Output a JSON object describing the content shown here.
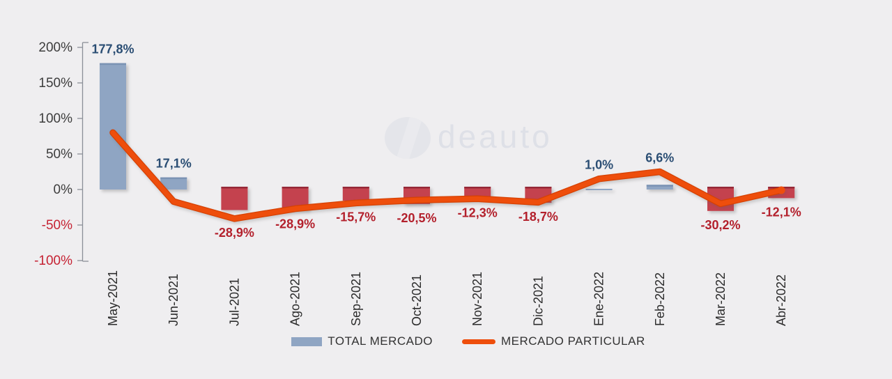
{
  "watermark": {
    "text": "deauto"
  },
  "legend": {
    "items": [
      {
        "label": "TOTAL MERCADO",
        "swatch": "bar"
      },
      {
        "label": "MERCADO PARTICULAR",
        "swatch": "line"
      }
    ]
  },
  "chart_data": {
    "type": "bar",
    "subtype": "combo-bar-line",
    "title": "",
    "xlabel": "",
    "ylabel": "",
    "categories": [
      "May-2021",
      "Jun-2021",
      "Jul-2021",
      "Ago-2021",
      "Sep-2021",
      "Oct-2021",
      "Nov-2021",
      "Dic-2021",
      "Ene-2022",
      "Feb-2022",
      "Mar-2022",
      "Abr-2022"
    ],
    "series": [
      {
        "name": "TOTAL MERCADO",
        "type": "bar",
        "values": [
          177.8,
          17.1,
          -28.9,
          -28.9,
          -15.7,
          -20.5,
          -12.3,
          -18.7,
          1.0,
          6.6,
          -30.2,
          -12.1
        ],
        "data_labels": [
          "177,8%",
          "17,1%",
          "-28,9%",
          "-28,9%",
          "-15,7%",
          "-20,5%",
          "-12,3%",
          "-18,7%",
          "1,0%",
          "6,6%",
          "-30,2%",
          "-12,1%"
        ]
      },
      {
        "name": "MERCADO PARTICULAR",
        "type": "line",
        "values_estimated": true,
        "values": [
          80,
          -17,
          -41,
          -27,
          -19,
          -15,
          -13,
          -18,
          15,
          25,
          -20,
          -1
        ]
      }
    ],
    "y_axis": {
      "tick_labels": [
        "200%",
        "150%",
        "100%",
        "50%",
        "0%",
        "-50%",
        "-100%"
      ],
      "tick_values": [
        200,
        150,
        100,
        50,
        0,
        -50,
        -100
      ],
      "min": -100,
      "max": 200,
      "grid": false
    },
    "legend_position": "bottom"
  },
  "colors": {
    "background": "#efeef0",
    "bar_positive": "#8fa5c3",
    "bar_positive_edge": "#7b93b4",
    "bar_negative": "#c4424e",
    "bar_negative_edge": "#962837",
    "line": "#ee4e0c",
    "line_edge": "#d64103",
    "label_positive": "#2a4d73",
    "label_negative": "#b3202c",
    "axis_line": "#8a8f98",
    "axis_text": "#3d3d3d",
    "axis_text_negative": "#c52233",
    "category_text": "#2b2b2b",
    "legend_text": "#333333",
    "watermark": "#dee0e7"
  }
}
